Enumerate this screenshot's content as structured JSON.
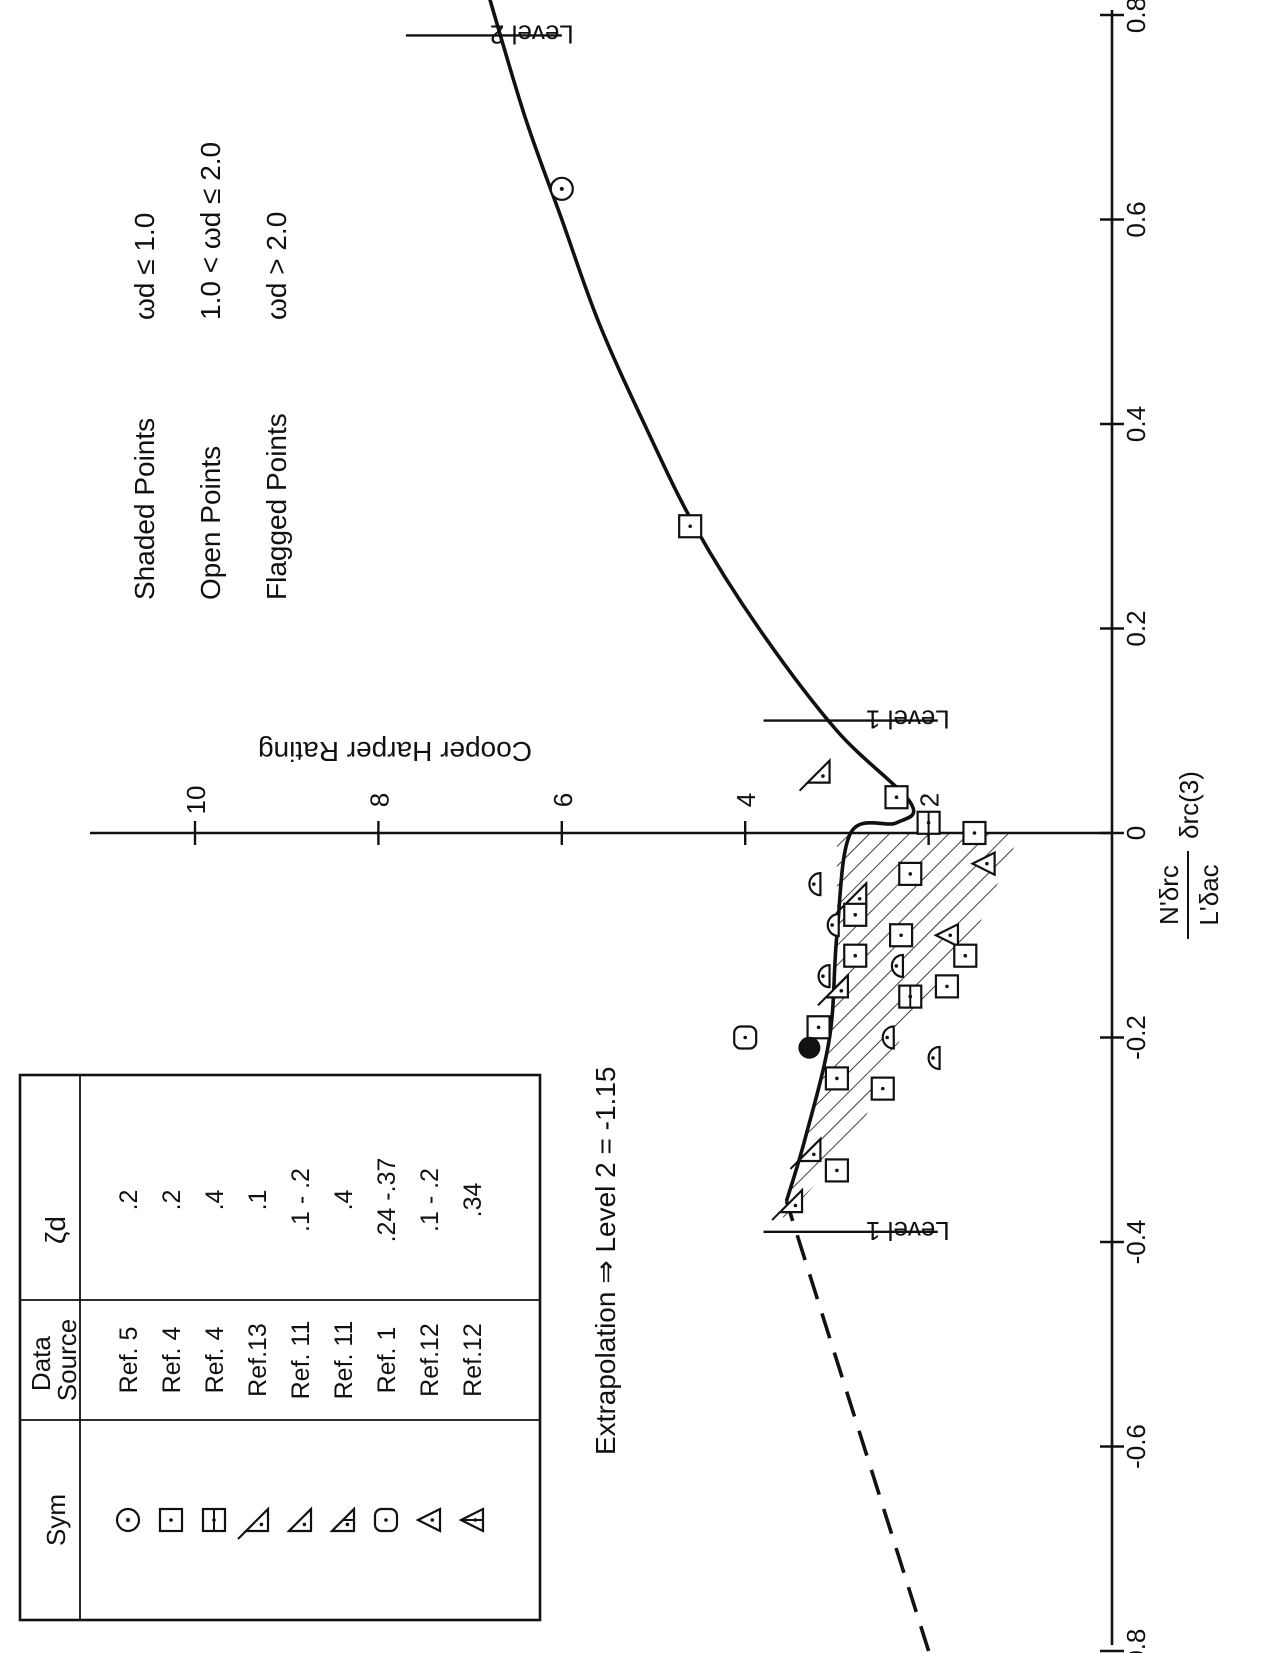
{
  "chart_data": {
    "type": "scatter",
    "orientation": "rotated-90",
    "x_axis": {
      "label": "N'δrc / L'δac · δrc(3)",
      "label_parts": {
        "num": "N'δrc",
        "den": "L'δac",
        "suffix": "δrc(3)"
      },
      "ticks": [
        -0.8,
        -0.6,
        -0.4,
        -0.2,
        0,
        0.2,
        0.4,
        0.6,
        0.8
      ],
      "tick_labels": [
        "-0.8",
        "-0.6",
        "-0.4",
        "-0.2",
        "0",
        "0.2",
        "0.4",
        "0.6",
        "0.8"
      ],
      "range": [
        -0.85,
        0.85
      ]
    },
    "y_axis": {
      "label": "Cooper Harper Rating",
      "ticks": [
        2,
        4,
        6,
        8,
        10
      ],
      "tick_labels": [
        "2",
        "4",
        "6",
        "8",
        "10"
      ],
      "range": [
        0,
        10.5
      ]
    },
    "curve": [
      [
        -0.36,
        3.55
      ],
      [
        -0.3,
        3.35
      ],
      [
        -0.2,
        3.08
      ],
      [
        -0.1,
        3.0
      ],
      [
        0.0,
        2.85
      ],
      [
        0.01,
        2.35
      ],
      [
        0.03,
        2.2
      ],
      [
        0.1,
        3.0
      ],
      [
        0.2,
        3.85
      ],
      [
        0.3,
        4.55
      ],
      [
        0.4,
        5.1
      ],
      [
        0.5,
        5.6
      ],
      [
        0.6,
        6.0
      ],
      [
        0.7,
        6.4
      ],
      [
        0.82,
        6.8
      ]
    ],
    "extrapolation": [
      [
        -0.8,
        2.0
      ],
      [
        -0.36,
        3.55
      ]
    ],
    "shaded_region": [
      [
        -0.38,
        3.6
      ],
      [
        -0.3,
        3.35
      ],
      [
        -0.2,
        3.08
      ],
      [
        -0.1,
        3.0
      ],
      [
        0.0,
        3.0
      ],
      [
        0.0,
        1.0
      ],
      [
        -0.1,
        1.5
      ],
      [
        -0.2,
        2.3
      ],
      [
        -0.3,
        2.8
      ],
      [
        -0.38,
        3.6
      ]
    ],
    "level_markers": [
      {
        "label": "Level 1",
        "x": -0.39,
        "y_range": [
          1.9,
          3.8
        ]
      },
      {
        "label": "Level 1",
        "x": 0.11,
        "y_range": [
          1.9,
          3.8
        ]
      },
      {
        "label": "Level 2",
        "x": 0.78,
        "y_range": [
          6.0,
          7.7
        ]
      }
    ],
    "points": [
      {
        "x": 0.63,
        "y": 6.0,
        "sym": "circle"
      },
      {
        "x": 0.3,
        "y": 4.6,
        "sym": "square"
      },
      {
        "x": 0.06,
        "y": 3.2,
        "sym": "flag-triangle"
      },
      {
        "x": 0.035,
        "y": 2.35,
        "sym": "square"
      },
      {
        "x": 0.01,
        "y": 2.0,
        "sym": "square-split"
      },
      {
        "x": 0.0,
        "y": 1.5,
        "sym": "square"
      },
      {
        "x": -0.03,
        "y": 1.4,
        "sym": "triangle"
      },
      {
        "x": -0.05,
        "y": 3.3,
        "sym": "half-circle"
      },
      {
        "x": -0.06,
        "y": 2.8,
        "sym": "flag-triangle"
      },
      {
        "x": -0.04,
        "y": 2.2,
        "sym": "square"
      },
      {
        "x": -0.08,
        "y": 2.8,
        "sym": "square"
      },
      {
        "x": -0.1,
        "y": 2.3,
        "sym": "square"
      },
      {
        "x": -0.09,
        "y": 3.1,
        "sym": "half-circle"
      },
      {
        "x": -0.1,
        "y": 1.8,
        "sym": "triangle"
      },
      {
        "x": -0.12,
        "y": 1.6,
        "sym": "square"
      },
      {
        "x": -0.13,
        "y": 2.4,
        "sym": "half-circle"
      },
      {
        "x": -0.15,
        "y": 3.0,
        "sym": "flag-triangle"
      },
      {
        "x": -0.16,
        "y": 2.2,
        "sym": "square-split"
      },
      {
        "x": -0.15,
        "y": 1.8,
        "sym": "square"
      },
      {
        "x": -0.12,
        "y": 2.8,
        "sym": "square"
      },
      {
        "x": -0.14,
        "y": 3.2,
        "sym": "half-circle"
      },
      {
        "x": -0.19,
        "y": 3.2,
        "sym": "square"
      },
      {
        "x": -0.21,
        "y": 3.3,
        "sym": "filled-circle"
      },
      {
        "x": -0.2,
        "y": 2.5,
        "sym": "half-circle"
      },
      {
        "x": -0.22,
        "y": 2.0,
        "sym": "half-circle"
      },
      {
        "x": -0.24,
        "y": 3.0,
        "sym": "square"
      },
      {
        "x": -0.25,
        "y": 2.5,
        "sym": "square"
      },
      {
        "x": -0.2,
        "y": 4.0,
        "sym": "rounded-square"
      },
      {
        "x": -0.31,
        "y": 3.3,
        "sym": "flag-triangle"
      },
      {
        "x": -0.33,
        "y": 3.0,
        "sym": "square"
      },
      {
        "x": -0.36,
        "y": 3.5,
        "sym": "flag-triangle"
      }
    ],
    "legend_table": {
      "headers": [
        "Sym",
        "Data Source",
        "ζd"
      ],
      "rows": [
        {
          "sym": "circle",
          "source": "Ref. 5",
          "zeta": ".2"
        },
        {
          "sym": "square",
          "source": "Ref. 4",
          "zeta": ".2"
        },
        {
          "sym": "square-split",
          "source": "Ref. 4",
          "zeta": ".4"
        },
        {
          "sym": "flag-triangle",
          "source": "Ref.13",
          "zeta": ".1"
        },
        {
          "sym": "half-triangle",
          "source": "Ref. 11",
          "zeta": ".1 - .2"
        },
        {
          "sym": "half-triangle-split",
          "source": "Ref. 11",
          "zeta": ".4"
        },
        {
          "sym": "rounded-square",
          "source": "Ref. 1",
          "zeta": ".24 -.37"
        },
        {
          "sym": "triangle",
          "source": "Ref.12",
          "zeta": ".1 - .2"
        },
        {
          "sym": "triangle-split",
          "source": "Ref.12",
          "zeta": ".34"
        }
      ]
    },
    "point_key": [
      {
        "name": "Shaded Points",
        "cond": "ωd ≤ 1.0"
      },
      {
        "name": "Open Points",
        "cond": "1.0 < ωd ≤ 2.0"
      },
      {
        "name": "Flagged Points",
        "cond": "ωd > 2.0"
      }
    ],
    "annotation": "Extrapolation ⇒ Level 2 = -1.15",
    "grid": false
  }
}
